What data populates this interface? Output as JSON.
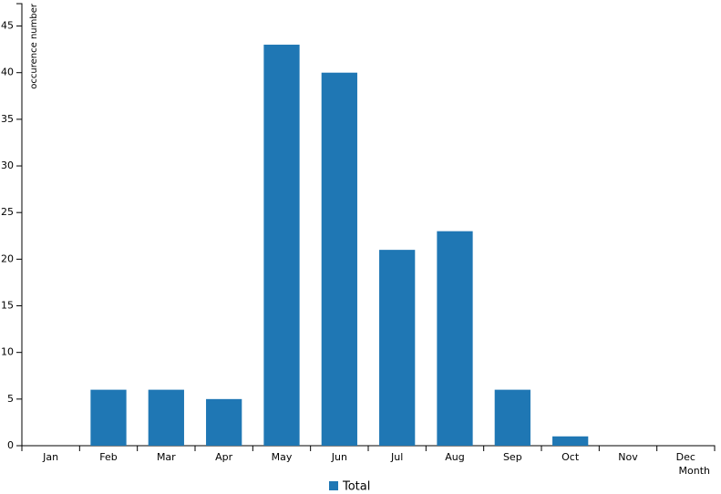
{
  "chart_data": {
    "type": "bar",
    "categories": [
      "Jan",
      "Feb",
      "Mar",
      "Apr",
      "May",
      "Jun",
      "Jul",
      "Aug",
      "Sep",
      "Oct",
      "Nov",
      "Dec"
    ],
    "series": [
      {
        "name": "Total",
        "color": "#1f77b4",
        "values": [
          0,
          6,
          6,
          5,
          43,
          40,
          21,
          23,
          6,
          1,
          0,
          0
        ]
      }
    ],
    "x_label": "Month",
    "y_label": "occurence number",
    "ylim": [
      0,
      47.4
    ],
    "yticks": [
      0,
      5,
      10,
      15,
      20,
      25,
      30,
      35,
      40,
      45
    ],
    "legend": "bottom"
  }
}
